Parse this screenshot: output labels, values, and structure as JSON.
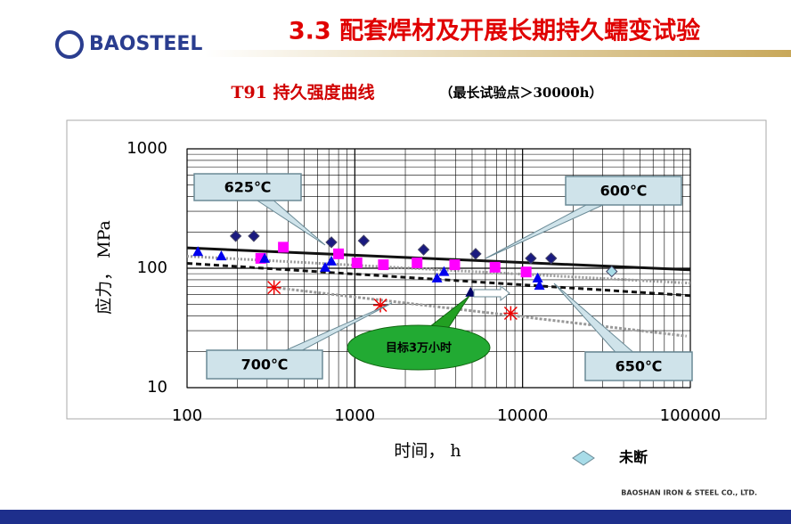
{
  "header": {
    "logo": "BAOSTEEL",
    "title": "3.3 配套焊材及开展长期持久蠕变试验"
  },
  "footer": "BAOSHAN IRON & STEEL CO., LTD.",
  "chart_data": {
    "type": "scatter",
    "title": "T91  持久强度曲线",
    "subtitle": "（最长试验点＞30000h）",
    "x_label": "时间，   h",
    "y_label": "应力，  MPa",
    "xlog": true,
    "ylog": true,
    "grid": true,
    "xlim": [
      100,
      100000
    ],
    "ylim": [
      10,
      1000
    ],
    "xticks": [
      100,
      1000,
      10000,
      100000
    ],
    "yticks": [
      10,
      100,
      1000
    ],
    "series": [
      {
        "name": "600℃",
        "color": "#1a1a80",
        "marker": "diamond",
        "x": [
          195,
          250,
          725,
          1130,
          2570,
          5250,
          11200,
          14800
        ],
        "values": [
          186,
          186,
          165,
          170,
          143,
          132,
          121,
          121
        ],
        "fit": {
          "x": [
            100,
            100000
          ],
          "values": [
            148,
            97
          ],
          "color": "#111",
          "dash": "none"
        }
      },
      {
        "name": "625℃",
        "color": "#ff00ff",
        "marker": "square",
        "x": [
          275,
          375,
          800,
          1030,
          1480,
          2350,
          3940,
          6850,
          10500
        ],
        "values": [
          121,
          150,
          132,
          111,
          107,
          111,
          107,
          102,
          93
        ],
        "fit": {
          "x": [
            100,
            100000
          ],
          "values": [
            126,
            75
          ],
          "color": "#999",
          "dash": "2,2"
        }
      },
      {
        "name": "650℃",
        "color": "#0000ee",
        "marker": "triangle",
        "x": [
          116,
          160,
          290,
          665,
          725,
          3090,
          3400,
          12300,
          12600
        ],
        "values": [
          138,
          127,
          121,
          102,
          115,
          83,
          94,
          83,
          72
        ],
        "fit": {
          "x": [
            100,
            100000
          ],
          "values": [
            110,
            59
          ],
          "color": "#111",
          "dash": "6,4"
        }
      },
      {
        "name": "700℃",
        "color": "#ee0000",
        "marker": "asterisk",
        "x": [
          330,
          1420,
          8500
        ],
        "values": [
          69,
          49,
          42
        ],
        "fit": {
          "x": [
            330,
            95000
          ],
          "values": [
            69,
            27
          ],
          "color": "#999",
          "dash": "3,2"
        }
      },
      {
        "name": "目标3万小时",
        "color": "#000066",
        "marker": "triangle",
        "x": [
          4900
        ],
        "values": [
          63
        ]
      },
      {
        "name": "未断",
        "color": "#a8dce8",
        "marker": "diamond",
        "x": [
          34000
        ],
        "values": [
          94
        ]
      }
    ]
  }
}
